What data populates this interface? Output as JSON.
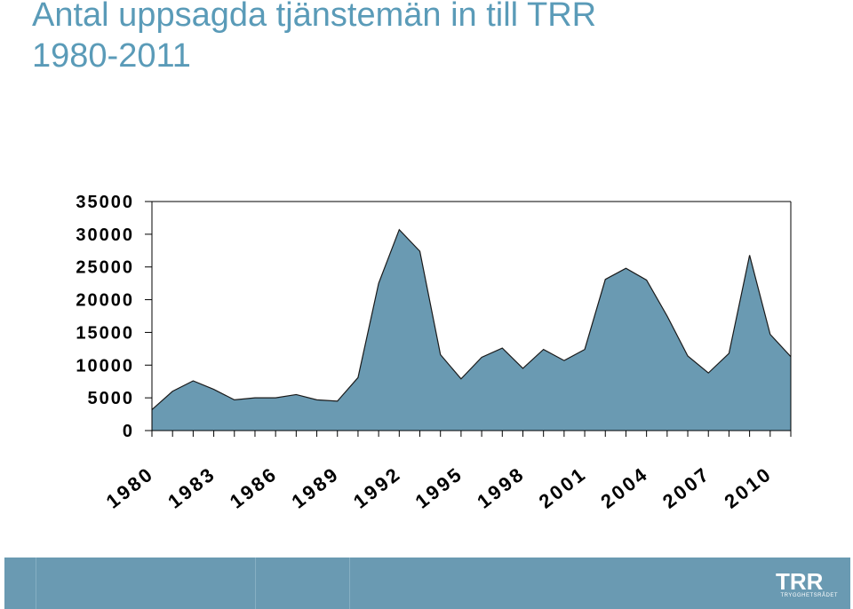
{
  "title": {
    "line1": "Antal uppsagda tjänstemän in till TRR",
    "line2": "1980-2011"
  },
  "chart_data": {
    "type": "area",
    "title": "Antal uppsagda tjänstemän in till TRR 1980-2011",
    "xlabel": "",
    "ylabel": "",
    "ylim": [
      0,
      35000
    ],
    "yticks": [
      0,
      5000,
      10000,
      15000,
      20000,
      25000,
      30000,
      35000
    ],
    "ytick_labels": [
      "0",
      "5000",
      "10000",
      "15000",
      "20000",
      "25000",
      "30000",
      "35000"
    ],
    "xticks": [
      "1980",
      "1983",
      "1986",
      "1989",
      "1992",
      "1995",
      "1998",
      "2001",
      "2004",
      "2007",
      "2010"
    ],
    "x": [
      1980,
      1981,
      1982,
      1983,
      1984,
      1985,
      1986,
      1987,
      1988,
      1989,
      1990,
      1991,
      1992,
      1993,
      1994,
      1995,
      1996,
      1997,
      1998,
      1999,
      2000,
      2001,
      2002,
      2003,
      2004,
      2005,
      2006,
      2007,
      2008,
      2009,
      2010,
      2011
    ],
    "values": [
      3200,
      6000,
      7600,
      6300,
      4700,
      5000,
      5000,
      5500,
      4700,
      4500,
      8100,
      22500,
      30700,
      27400,
      11600,
      7900,
      11200,
      12600,
      9500,
      12400,
      10700,
      12400,
      23100,
      24800,
      23000,
      17500,
      11400,
      8800,
      11800,
      26800,
      14700,
      11300
    ],
    "series": [
      {
        "values": "values",
        "color": "#6a9ab2"
      }
    ],
    "grid": false,
    "legend": "none"
  },
  "footer": {
    "logo_text": "TRYGGHETSRÅDET",
    "logo_letters": "TRR"
  },
  "colors": {
    "title": "#5a9bb8",
    "area": "#6a9ab2",
    "footer": "#6a9ab2"
  }
}
